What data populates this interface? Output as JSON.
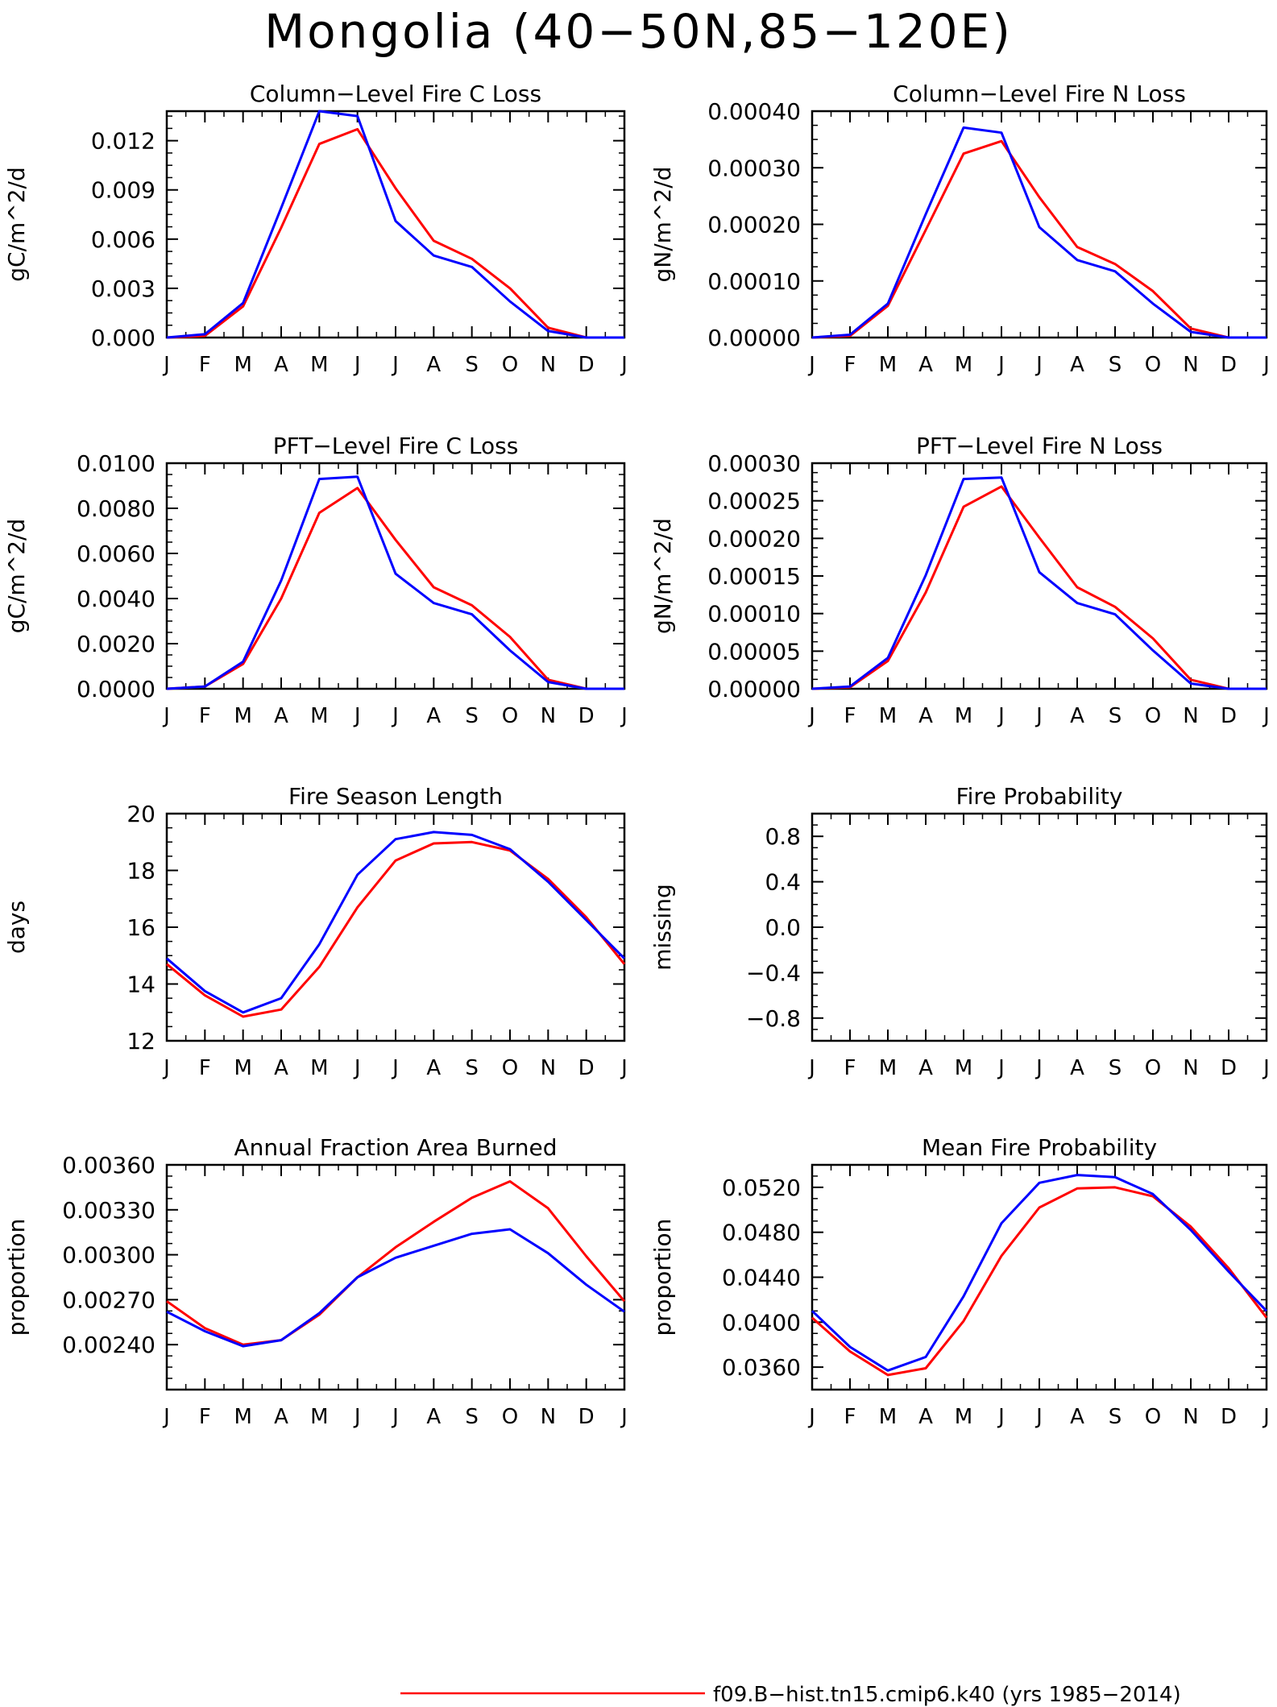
{
  "title": "Mongolia (40−50N,85−120E)",
  "colors": {
    "series_1": "#ff0000",
    "series_2": "#0000ff",
    "axes": "#000000"
  },
  "legend": {
    "entries": [
      {
        "label": "f09.B−hist.tn15.cmip6.k40 (yrs 1985−2014)",
        "color": "#ff0000"
      }
    ]
  },
  "chart_data": [
    {
      "type": "line",
      "title": "Column−Level Fire C Loss",
      "ylabel": "gC/m^2/d",
      "categories": [
        "J",
        "F",
        "M",
        "A",
        "M",
        "J",
        "J",
        "A",
        "S",
        "O",
        "N",
        "D",
        "J"
      ],
      "yticks": [
        "0.000",
        "0.003",
        "0.006",
        "0.009",
        "0.012"
      ],
      "ylim": [
        0,
        0.0138
      ],
      "series": [
        {
          "color": "#ff0000",
          "values": [
            0.0,
            0.0001,
            0.0019,
            0.0067,
            0.0118,
            0.0127,
            0.0091,
            0.0059,
            0.0048,
            0.003,
            0.0006,
            0.0,
            0.0
          ]
        },
        {
          "color": "#0000ff",
          "values": [
            0.0,
            0.0002,
            0.0021,
            0.0079,
            0.0138,
            0.0135,
            0.0071,
            0.005,
            0.0043,
            0.0022,
            0.0004,
            0.0,
            0.0
          ]
        }
      ]
    },
    {
      "type": "line",
      "title": "Column−Level Fire N Loss",
      "ylabel": "gN/m^2/d",
      "categories": [
        "J",
        "F",
        "M",
        "A",
        "M",
        "J",
        "J",
        "A",
        "S",
        "O",
        "N",
        "D",
        "J"
      ],
      "yticks": [
        "0.00000",
        "0.00010",
        "0.00020",
        "0.00030",
        "0.00040"
      ],
      "ylim": [
        0,
        0.0004
      ],
      "series": [
        {
          "color": "#ff0000",
          "values": [
            0.0,
            3e-06,
            5.6e-05,
            0.00019,
            0.000325,
            0.000347,
            0.000248,
            0.00016,
            0.00013,
            8.2e-05,
            1.6e-05,
            0.0,
            0.0
          ]
        },
        {
          "color": "#0000ff",
          "values": [
            0.0,
            5e-06,
            6e-05,
            0.000218,
            0.000371,
            0.000362,
            0.000195,
            0.000137,
            0.000117,
            6e-05,
            1e-05,
            0.0,
            0.0
          ]
        }
      ]
    },
    {
      "type": "line",
      "title": "PFT−Level Fire C Loss",
      "ylabel": "gC/m^2/d",
      "categories": [
        "J",
        "F",
        "M",
        "A",
        "M",
        "J",
        "J",
        "A",
        "S",
        "O",
        "N",
        "D",
        "J"
      ],
      "yticks": [
        "0.0000",
        "0.0020",
        "0.0040",
        "0.0060",
        "0.0080",
        "0.0100"
      ],
      "ylim": [
        0,
        0.01
      ],
      "series": [
        {
          "color": "#ff0000",
          "values": [
            0.0,
            0.0001,
            0.0011,
            0.004,
            0.0078,
            0.0089,
            0.0066,
            0.0045,
            0.0037,
            0.0023,
            0.0004,
            0.0,
            0.0
          ]
        },
        {
          "color": "#0000ff",
          "values": [
            0.0,
            0.0001,
            0.0012,
            0.0048,
            0.0093,
            0.0094,
            0.0051,
            0.0038,
            0.0033,
            0.0017,
            0.0003,
            0.0,
            0.0
          ]
        }
      ]
    },
    {
      "type": "line",
      "title": "PFT−Level Fire N Loss",
      "ylabel": "gN/m^2/d",
      "categories": [
        "J",
        "F",
        "M",
        "A",
        "M",
        "J",
        "J",
        "A",
        "S",
        "O",
        "N",
        "D",
        "J"
      ],
      "yticks": [
        "0.00000",
        "0.00005",
        "0.00010",
        "0.00015",
        "0.00020",
        "0.00025",
        "0.00030"
      ],
      "ylim": [
        0,
        0.0003
      ],
      "series": [
        {
          "color": "#ff0000",
          "values": [
            0.0,
            2e-06,
            3.7e-05,
            0.000128,
            0.000242,
            0.000269,
            0.000201,
            0.000135,
            0.000109,
            6.7e-05,
            1.2e-05,
            0.0,
            0.0
          ]
        },
        {
          "color": "#0000ff",
          "values": [
            0.0,
            3e-06,
            4.1e-05,
            0.000151,
            0.000279,
            0.000281,
            0.000155,
            0.000114,
            9.9e-05,
            5.1e-05,
            7e-06,
            0.0,
            0.0
          ]
        }
      ]
    },
    {
      "type": "line",
      "title": "Fire Season Length",
      "ylabel": "days",
      "categories": [
        "J",
        "F",
        "M",
        "A",
        "M",
        "J",
        "J",
        "A",
        "S",
        "O",
        "N",
        "D",
        "J"
      ],
      "yticks": [
        "12",
        "14",
        "16",
        "18",
        "20"
      ],
      "ylim": [
        12,
        20
      ],
      "series": [
        {
          "color": "#ff0000",
          "values": [
            14.7,
            13.6,
            12.85,
            13.1,
            14.6,
            16.7,
            18.35,
            18.95,
            19.0,
            18.7,
            17.7,
            16.35,
            14.7
          ]
        },
        {
          "color": "#0000ff",
          "values": [
            14.9,
            13.75,
            13.0,
            13.5,
            15.4,
            17.85,
            19.1,
            19.35,
            19.25,
            18.75,
            17.6,
            16.25,
            14.9
          ]
        }
      ]
    },
    {
      "type": "line",
      "title": "Fire Probability",
      "ylabel": "missing",
      "categories": [
        "J",
        "F",
        "M",
        "A",
        "M",
        "J",
        "J",
        "A",
        "S",
        "O",
        "N",
        "D",
        "J"
      ],
      "yticks": [
        "−0.8",
        "−0.4",
        "0.0",
        "0.4",
        "0.8"
      ],
      "ylim": [
        -1,
        1
      ],
      "series": []
    },
    {
      "type": "line",
      "title": "Annual Fraction Area Burned",
      "ylabel": "proportion",
      "categories": [
        "J",
        "F",
        "M",
        "A",
        "M",
        "J",
        "J",
        "A",
        "S",
        "O",
        "N",
        "D",
        "J"
      ],
      "yticks": [
        "0.00240",
        "0.00270",
        "0.00300",
        "0.00330",
        "0.00360"
      ],
      "ylim": [
        0.0021,
        0.0036
      ],
      "series": [
        {
          "color": "#ff0000",
          "values": [
            0.00269,
            0.00251,
            0.0024,
            0.00243,
            0.0026,
            0.00285,
            0.00305,
            0.00322,
            0.00338,
            0.00349,
            0.00331,
            0.00299,
            0.00269
          ]
        },
        {
          "color": "#0000ff",
          "values": [
            0.00262,
            0.00249,
            0.00239,
            0.00243,
            0.00261,
            0.00285,
            0.00298,
            0.00306,
            0.00314,
            0.00317,
            0.00301,
            0.0028,
            0.00262
          ]
        }
      ]
    },
    {
      "type": "line",
      "title": "Mean Fire Probability",
      "ylabel": "proportion",
      "categories": [
        "J",
        "F",
        "M",
        "A",
        "M",
        "J",
        "J",
        "A",
        "S",
        "O",
        "N",
        "D",
        "J"
      ],
      "yticks": [
        "0.0360",
        "0.0400",
        "0.0440",
        "0.0480",
        "0.0520"
      ],
      "ylim": [
        0.034,
        0.054
      ],
      "series": [
        {
          "color": "#ff0000",
          "values": [
            0.0404,
            0.0374,
            0.0353,
            0.0359,
            0.0401,
            0.0459,
            0.0502,
            0.0519,
            0.052,
            0.0512,
            0.0485,
            0.0448,
            0.0404
          ]
        },
        {
          "color": "#0000ff",
          "values": [
            0.041,
            0.0378,
            0.0357,
            0.0369,
            0.0423,
            0.0488,
            0.0524,
            0.0531,
            0.0529,
            0.0514,
            0.0482,
            0.0445,
            0.041
          ]
        }
      ]
    }
  ]
}
